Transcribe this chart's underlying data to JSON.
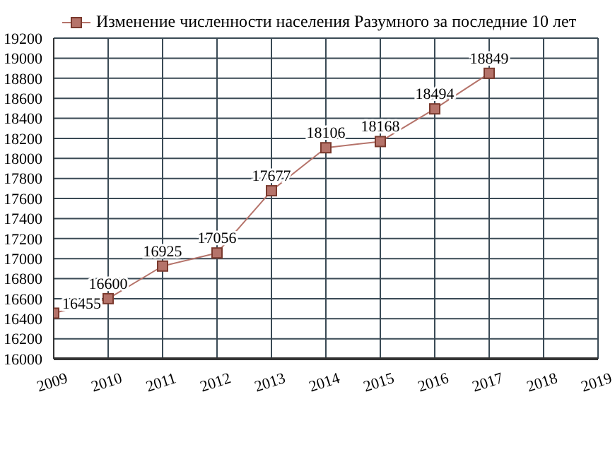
{
  "chart_data": {
    "type": "line",
    "x": [
      2009,
      2010,
      2011,
      2012,
      2013,
      2014,
      2015,
      2016,
      2017
    ],
    "series": [
      {
        "name": "Изменение численности населения Разумного за последние 10 лет",
        "color": "#b5736a",
        "values": [
          16455,
          16600,
          16925,
          17056,
          17677,
          18106,
          18168,
          18494,
          18849
        ]
      }
    ],
    "xlim": [
      2009,
      2019
    ],
    "xticks": [
      2009,
      2010,
      2011,
      2012,
      2013,
      2014,
      2015,
      2016,
      2017,
      2018,
      2019
    ],
    "ylim": [
      16000,
      19200
    ],
    "yticks": [
      16000,
      16200,
      16400,
      16600,
      16800,
      17000,
      17200,
      17400,
      17600,
      17800,
      18000,
      18200,
      18400,
      18600,
      18800,
      19000,
      19200
    ],
    "grid": true,
    "legend": "top left",
    "marker": "square",
    "line_style": "solid",
    "data_labels": true
  }
}
